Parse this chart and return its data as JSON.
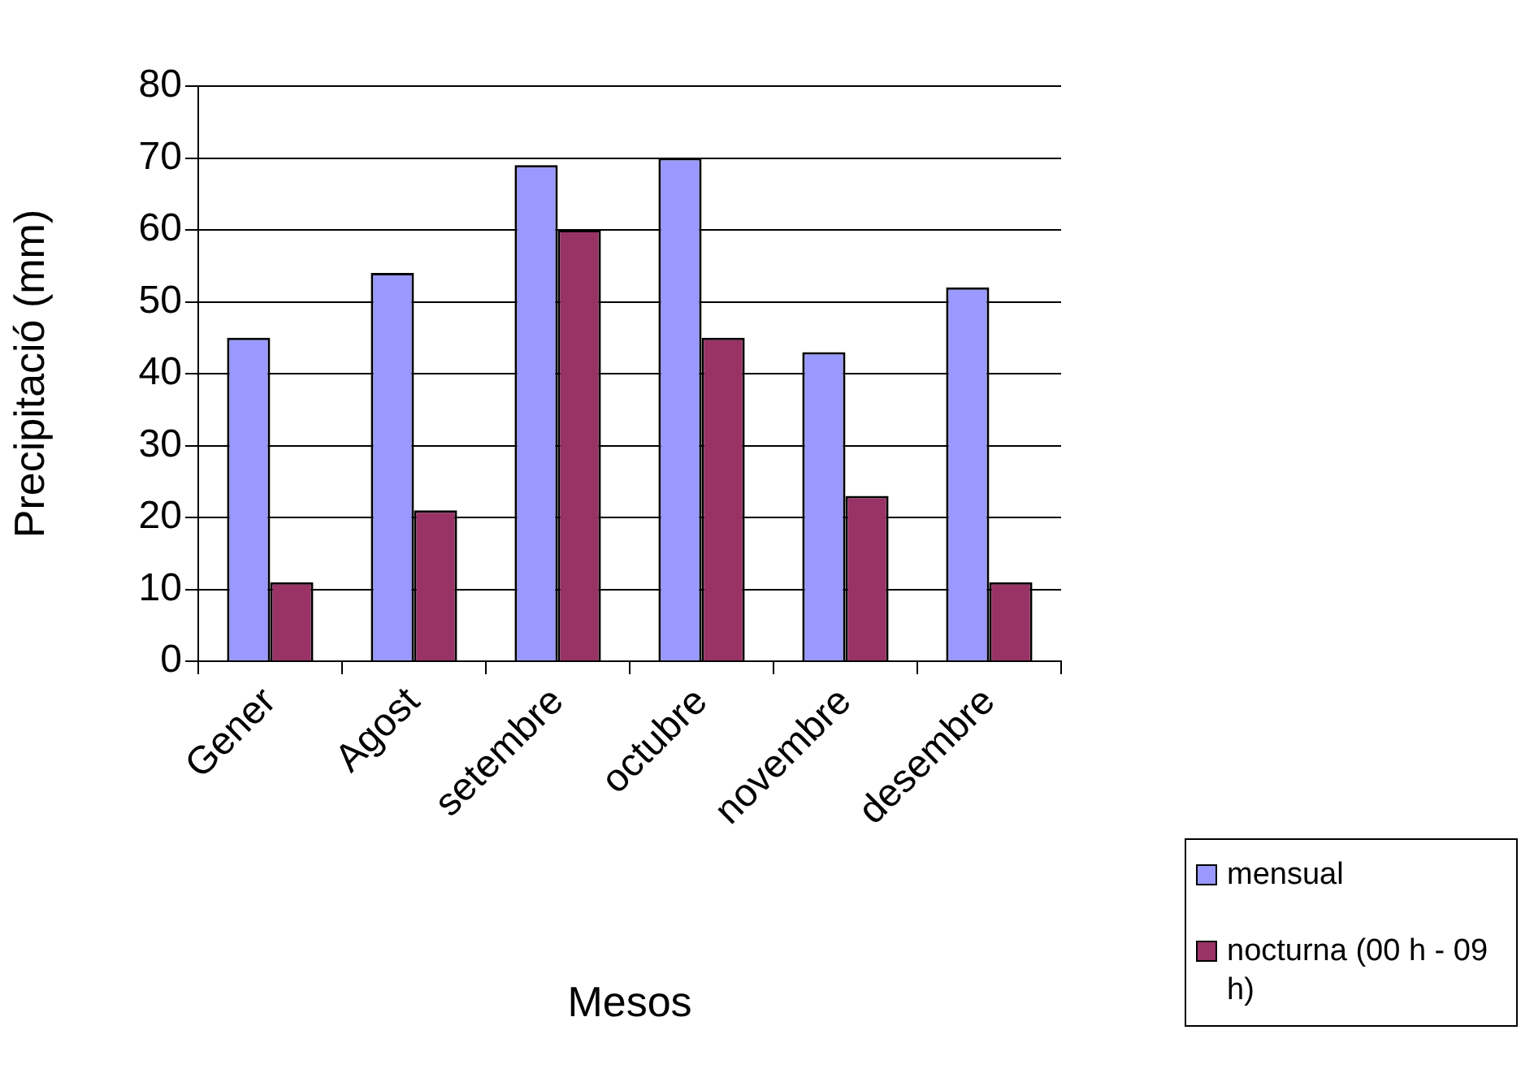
{
  "chart_data": {
    "type": "bar",
    "xlabel": "Mesos",
    "ylabel": "Precipitació (mm)",
    "categories": [
      "Gener",
      "Agost",
      "setembre",
      "octubre",
      "novembre",
      "desembre"
    ],
    "series": [
      {
        "name": "mensual",
        "color": "#9999ff",
        "values": [
          45,
          54,
          69,
          70,
          43,
          52
        ]
      },
      {
        "name": "nocturna (00 h - 09 h)",
        "color": "#993366",
        "values": [
          11,
          21,
          60,
          45,
          23,
          11
        ]
      }
    ],
    "ylim": [
      0,
      80
    ],
    "yticks": [
      0,
      10,
      20,
      30,
      40,
      50,
      60,
      70,
      80
    ],
    "grid": "y",
    "legend": "bottom right"
  }
}
